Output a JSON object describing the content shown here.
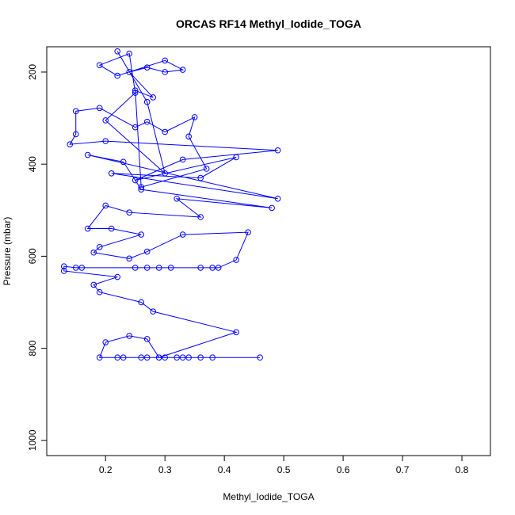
{
  "chart_data": {
    "type": "line",
    "title": "ORCAS RF14 Methyl_Iodide_TOGA",
    "x_label": "Methyl_Iodide_TOGA",
    "y_label": "Pressure (mbar)",
    "color": "#0000ff",
    "markers": true,
    "x": [
      0.46,
      0.38,
      0.36,
      0.34,
      0.33,
      0.32,
      0.3,
      0.29,
      0.27,
      0.26,
      0.23,
      0.22,
      0.19,
      0.2,
      0.24,
      0.27,
      0.29,
      0.42,
      0.28,
      0.26,
      0.19,
      0.18,
      0.22,
      0.13,
      0.13,
      0.15,
      0.16,
      0.25,
      0.27,
      0.29,
      0.31,
      0.36,
      0.38,
      0.39,
      0.42,
      0.44,
      0.33,
      0.27,
      0.24,
      0.18,
      0.19,
      0.26,
      0.21,
      0.17,
      0.2,
      0.24,
      0.36,
      0.32,
      0.48,
      0.26,
      0.23,
      0.17,
      0.49,
      0.21,
      0.36,
      0.42,
      0.25,
      0.33,
      0.49,
      0.2,
      0.14,
      0.15,
      0.15,
      0.19,
      0.25,
      0.27,
      0.3,
      0.35,
      0.34,
      0.37,
      0.26,
      0.25,
      0.28,
      0.24,
      0.27,
      0.3,
      0.33,
      0.3,
      0.22,
      0.19,
      0.24,
      0.25,
      0.2,
      0.3,
      0.27,
      0.22
    ],
    "values": [
      820,
      820,
      820,
      820,
      820,
      820,
      820,
      820,
      820,
      820,
      820,
      820,
      820,
      787,
      773,
      780,
      820,
      765,
      720,
      700,
      678,
      662,
      645,
      632,
      622,
      625,
      625,
      625,
      625,
      625,
      625,
      625,
      625,
      625,
      608,
      548,
      553,
      590,
      605,
      592,
      580,
      553,
      540,
      540,
      490,
      505,
      515,
      475,
      495,
      455,
      395,
      380,
      475,
      420,
      430,
      385,
      435,
      390,
      370,
      350,
      357,
      335,
      285,
      278,
      320,
      308,
      330,
      298,
      340,
      410,
      450,
      240,
      255,
      200,
      190,
      200,
      195,
      175,
      208,
      185,
      160,
      245,
      305,
      420,
      265,
      155
    ],
    "xlim": [
      0.101,
      0.848
    ],
    "ylim": [
      1033,
      145
    ],
    "xticks": [
      0.2,
      0.3,
      0.4,
      0.5,
      0.6,
      0.7,
      0.8
    ],
    "yticks": [
      200,
      400,
      600,
      800,
      1000
    ]
  }
}
